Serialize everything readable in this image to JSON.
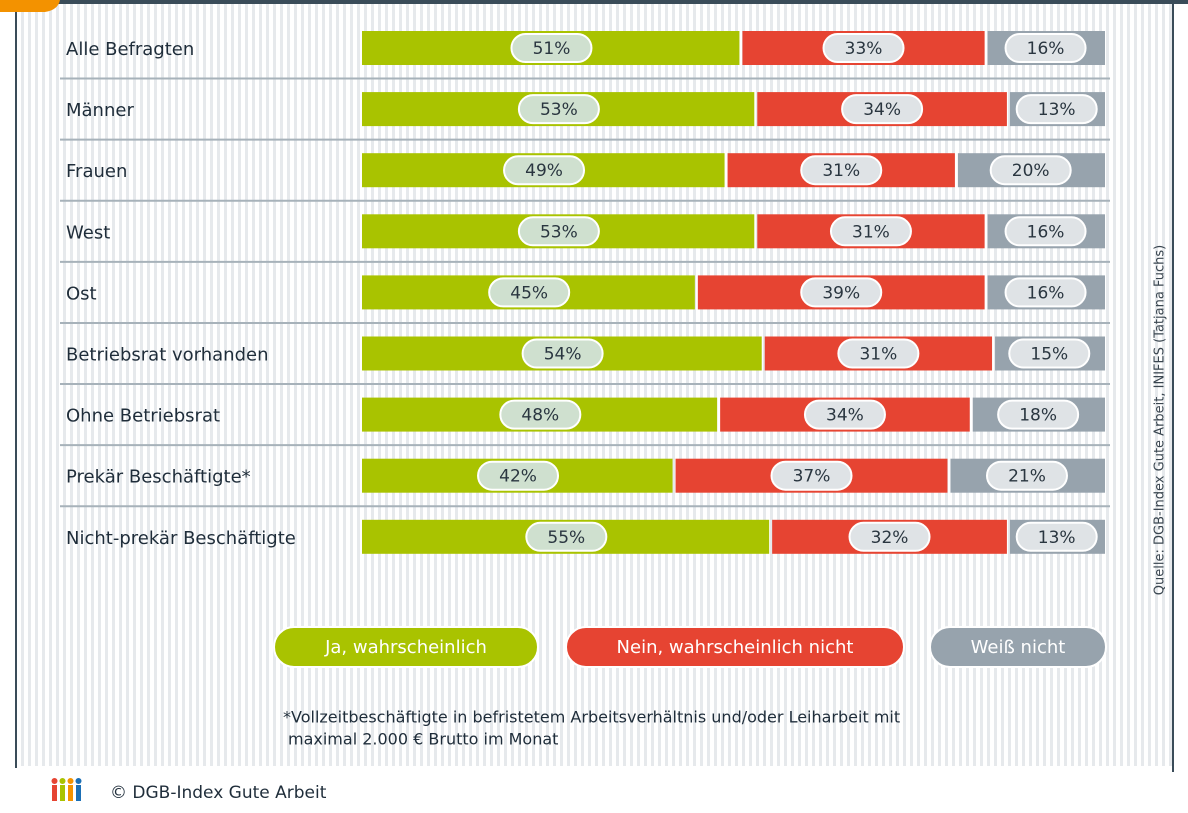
{
  "chart_data": {
    "type": "stacked-bar",
    "orientation": "horizontal",
    "categories": [
      "Alle Befragten",
      "Männer",
      "Frauen",
      "West",
      "Ost",
      "Betriebsrat vorhanden",
      "Ohne Betriebsrat",
      "Prekär Beschäftigte*",
      "Nicht-prekär Beschäftigte"
    ],
    "series": [
      {
        "name": "Ja, wahrscheinlich",
        "color": "#a9c300",
        "label_color": "#cfe0cf",
        "values": [
          51,
          53,
          49,
          53,
          45,
          54,
          48,
          42,
          55
        ],
        "value_labels": [
          "51%",
          "53%",
          "49%",
          "53%",
          "45%",
          "54%",
          "48%",
          "42%",
          "55%"
        ]
      },
      {
        "name": "Nein, wahrscheinlich nicht",
        "color": "#e64432",
        "label_color": "#dfe3e6",
        "values": [
          33,
          34,
          31,
          31,
          39,
          31,
          34,
          37,
          32
        ],
        "value_labels": [
          "33%",
          "34%",
          "31%",
          "31%",
          "39%",
          "31%",
          "34%",
          "37%",
          "32%"
        ]
      },
      {
        "name": "Weiß nicht",
        "color": "#97a3ad",
        "label_color": "#dfe3e6",
        "values": [
          16,
          13,
          20,
          16,
          16,
          15,
          18,
          21,
          13
        ],
        "value_labels": [
          "16%",
          "13%",
          "20%",
          "16%",
          "16%",
          "15%",
          "18%",
          "21%",
          "13%"
        ]
      }
    ],
    "xlim": [
      0,
      100
    ],
    "source": "Quelle: DGB-Index Gute Arbeit, INIFES (Tatjana Fuchs)",
    "footnote": [
      "*Vollzeitbeschäftigte in befristetem Arbeitsverhältnis und/oder Leiharbeit mit",
      "maximal 2.000 € Brutto im Monat"
    ],
    "copyright": "© DGB-Index Gute Arbeit"
  }
}
